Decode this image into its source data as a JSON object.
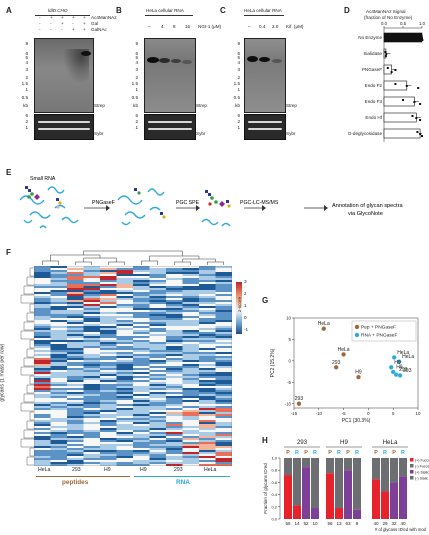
{
  "A": {
    "letter": "A",
    "title": "ldlD CHO",
    "cond_labels": [
      "Ac4ManNAz",
      "Gal",
      "GalNAc"
    ],
    "signs": [
      [
        "-",
        "+",
        "+",
        "+",
        "+"
      ],
      [
        "-",
        "-",
        "+",
        "-",
        "+"
      ],
      [
        "-",
        "-",
        "-",
        "+",
        "+"
      ]
    ],
    "kb": [
      "9",
      "6",
      "5",
      "4",
      "3",
      "2",
      "1.5",
      "1",
      "0.5"
    ],
    "kb_unit": "kb",
    "strep": "Strep",
    "sybr": "Sybr"
  },
  "B": {
    "letter": "B",
    "title": "HeLa cellular RNA",
    "conc_label": "NGI-1 (μM)",
    "conc": [
      "–",
      "4",
      "8",
      "16"
    ],
    "kb": [
      "9",
      "6",
      "5",
      "4",
      "3",
      "2",
      "1.5",
      "1",
      "0.5"
    ],
    "kb_unit": "kb",
    "strep": "Strep",
    "sybr": "Sybr"
  },
  "C": {
    "letter": "C",
    "title": "HeLa cellular RNA",
    "conc_label": "Kif. (μM)",
    "conc": [
      "–",
      "0.4",
      "2.0"
    ],
    "kb": [
      "9",
      "6",
      "5",
      "4",
      "3",
      "2",
      "1.5",
      "1",
      "0.5"
    ],
    "kb_unit": "kb",
    "strep": "Strep",
    "sybr": "Sybr"
  },
  "D": {
    "letter": "D",
    "title_line1": "Ac4ManNAz Signal",
    "title_line2": "(fraction of No Enzyme)",
    "axis_ticks": [
      "0.0",
      "0.5",
      "1.0"
    ],
    "chart_data": {
      "type": "bar",
      "title": "Ac4ManNAz Signal (fraction of No Enzyme)",
      "categories": [
        "No Enzyme",
        "Sialidase",
        "PNGaseF",
        "Endo F2",
        "Endo F3",
        "Endo Hf",
        "O-deglycosidase"
      ],
      "values": [
        1.0,
        0.05,
        0.2,
        0.6,
        0.8,
        0.85,
        0.95
      ],
      "xlim": [
        0,
        1
      ]
    }
  },
  "E": {
    "letter": "E",
    "small_rna": "Small RNA",
    "step1": "PNGaseF",
    "step2": "PGC SPE",
    "step3": "PGC-LC-MS/MS",
    "step4_line1": "Annotation of glycan spectra",
    "step4_line2": "via GlycoNote"
  },
  "F": {
    "letter": "F",
    "ylabel": "glycans (1 mass per row)",
    "colorbar_label": "z-score",
    "colorbar_ticks": [
      "3",
      "2",
      "1",
      "0",
      "-1"
    ],
    "columns": [
      "HeLa",
      "293",
      "H9",
      "H9",
      "293",
      "HeLa"
    ],
    "group_peptides": "peptides",
    "group_rna": "RNA"
  },
  "G": {
    "letter": "G",
    "legend": [
      "Pep + PNGaseF",
      "RNA + PNGaseF"
    ],
    "colors": {
      "pep": "#a0673a",
      "rna": "#2ba9e0"
    },
    "xlabel": "PC1 (30.3%)",
    "ylabel": "PC2 (15.2%)",
    "xticks": [
      "-15",
      "-10",
      "-5",
      "0",
      "5",
      "10"
    ],
    "yticks": [
      "10",
      "5",
      "0",
      "-5",
      "-10"
    ],
    "chart_data": {
      "type": "scatter",
      "xlabel": "PC1 (30.3%)",
      "ylabel": "PC2 (15.2%)",
      "xlim": [
        -15,
        10
      ],
      "ylim": [
        -11,
        10
      ],
      "series": [
        {
          "name": "Pep + PNGaseF",
          "points": [
            {
              "label": "HeLa",
              "x": -9,
              "y": 7.5
            },
            {
              "label": "293",
              "x": -6.5,
              "y": -1.5
            },
            {
              "label": "HeLa",
              "x": -5,
              "y": 1.5
            },
            {
              "label": "H9",
              "x": -2,
              "y": -3.8
            },
            {
              "label": "293",
              "x": -14,
              "y": -10
            }
          ]
        },
        {
          "name": "RNA + PNGaseF",
          "points": [
            {
              "label": "HeLa",
              "x": 5.2,
              "y": 0.8
            },
            {
              "label": "HeLa",
              "x": 6.2,
              "y": -0.2
            },
            {
              "label": "H9",
              "x": 4.6,
              "y": -1.5
            },
            {
              "label": "H9",
              "x": 5.0,
              "y": -2.6
            },
            {
              "label": "293",
              "x": 5.6,
              "y": -3.2
            },
            {
              "label": "293",
              "x": 6.4,
              "y": -3.4
            }
          ]
        }
      ]
    }
  },
  "H": {
    "letter": "H",
    "ylabel": "Fraction of glycans ID'ed",
    "yticks": [
      "1.0",
      "0.8",
      "0.6",
      "0.4",
      "0.2",
      "0.0"
    ],
    "groups": [
      "293",
      "H9",
      "HeLa"
    ],
    "legend": [
      "(+) Fucose",
      "(-) Fucose",
      "(+) Sialic Acid",
      "(-) Sialic Acid"
    ],
    "colors": {
      "fuc_pos": "#e8222a",
      "fuc_neg": "#6d6e71",
      "sia_pos": "#7e3f98",
      "sia_neg": "#6d6e71"
    },
    "footer": "# of glycans ID'ed with mod",
    "chart_data": {
      "type": "bar",
      "categories": [
        "293 P Fuc",
        "293 R Fuc",
        "293 P Sia",
        "293 R Sia",
        "H9 P Fuc",
        "H9 R Fuc",
        "H9 P Sia",
        "H9 R Sia",
        "HeLa P Fuc",
        "HeLa R Fuc",
        "HeLa P Sia",
        "HeLa R Sia"
      ],
      "series": [
        {
          "name": "(+) Fucose / (+) Sialic Acid",
          "values": [
            0.72,
            0.22,
            0.85,
            0.18,
            0.75,
            0.18,
            0.8,
            0.15,
            0.65,
            0.45,
            0.6,
            0.7
          ]
        }
      ],
      "labels": [
        {
          "pt": "P",
          "g": "293",
          "n": 55
        },
        {
          "pt": "R",
          "g": "293",
          "n": 14
        },
        {
          "pt": "P",
          "g": "293",
          "n": 52
        },
        {
          "pt": "R",
          "g": "293",
          "n": 10
        },
        {
          "pt": "P",
          "g": "H9",
          "n": 56
        },
        {
          "pt": "R",
          "g": "H9",
          "n": 13
        },
        {
          "pt": "P",
          "g": "H9",
          "n": 63
        },
        {
          "pt": "R",
          "g": "H9",
          "n": 9
        },
        {
          "pt": "P",
          "g": "HeLa",
          "n": 40
        },
        {
          "pt": "R",
          "g": "HeLa",
          "n": 29
        },
        {
          "pt": "P",
          "g": "HeLa",
          "n": 32
        },
        {
          "pt": "R",
          "g": "HeLa",
          "n": 40
        }
      ]
    }
  }
}
